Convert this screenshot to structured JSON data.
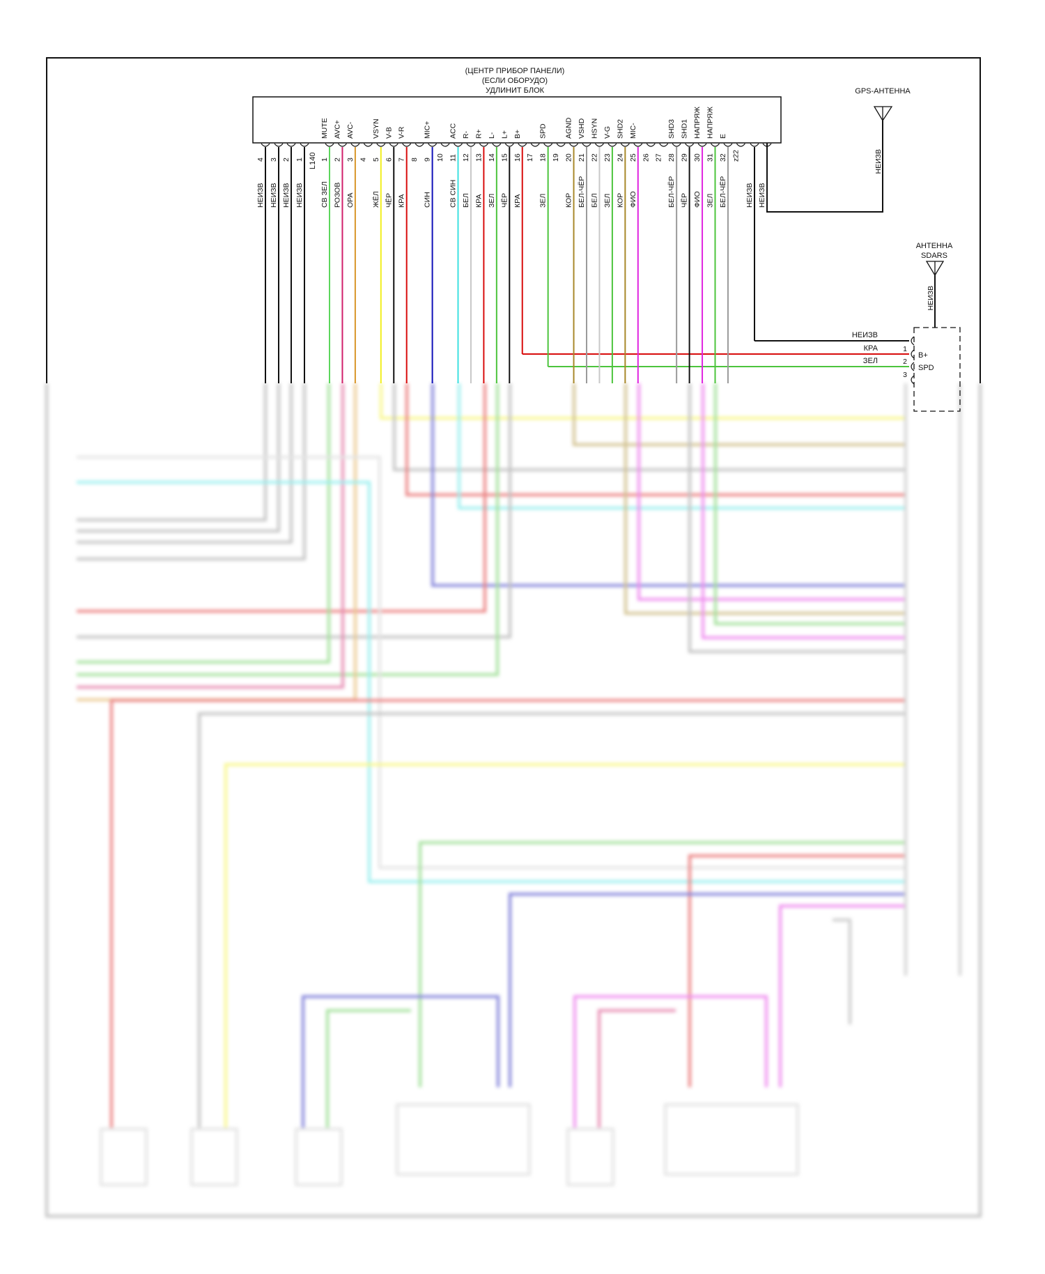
{
  "unit": {
    "title_lines": [
      "(ЦЕНТР ПРИБОР ПАНЕЛИ)",
      "(ЕСЛИ ОБОРУДО)",
      "УДЛИНИТ БЛОК"
    ],
    "connector_id": "L140"
  },
  "colors": {
    "ЧЁР": "#111111",
    "НЕИЗВ": "#111111",
    "СВ ЗЕЛ": "#5cd65c",
    "РОЗОВ": "#d0206a",
    "ОРА": "#d8962a",
    "ЖЁЛ": "#f2ef1e",
    "КРА": "#d80c0c",
    "СИН": "#1010b8",
    "СВ СИН": "#3ee0e0",
    "БЕЛ": "#c8c8c8",
    "ЗЕЛ": "#4cc43c",
    "КОР": "#a8882a",
    "БЕЛ-ЧЁР": "#9a9a9a",
    "ФИО": "#e024e0"
  },
  "left_pins": [
    {
      "num": "4",
      "wire": "НЕИЗВ"
    },
    {
      "num": "3",
      "wire": "НЕИЗВ"
    },
    {
      "num": "2",
      "wire": "НЕИЗВ"
    },
    {
      "num": "1",
      "wire": "НЕИЗВ"
    }
  ],
  "pins": [
    {
      "num": "1",
      "signal": "MUTE",
      "wire": "СВ ЗЕЛ"
    },
    {
      "num": "2",
      "signal": "AVC+",
      "wire": "РОЗОВ"
    },
    {
      "num": "3",
      "signal": "AVC-",
      "wire": "ОРА"
    },
    {
      "num": "4",
      "signal": "",
      "wire": ""
    },
    {
      "num": "5",
      "signal": "VSYN",
      "wire": "ЖЁЛ"
    },
    {
      "num": "6",
      "signal": "V-B",
      "wire": "ЧЁР"
    },
    {
      "num": "7",
      "signal": "V-R",
      "wire": "КРА"
    },
    {
      "num": "8",
      "signal": "",
      "wire": ""
    },
    {
      "num": "9",
      "signal": "MIC+",
      "wire": "СИН"
    },
    {
      "num": "10",
      "signal": "",
      "wire": ""
    },
    {
      "num": "11",
      "signal": "ACC",
      "wire": "СВ СИН"
    },
    {
      "num": "12",
      "signal": "R-",
      "wire": "БЕЛ"
    },
    {
      "num": "13",
      "signal": "R+",
      "wire": "КРА"
    },
    {
      "num": "14",
      "signal": "L-",
      "wire": "ЗЕЛ"
    },
    {
      "num": "15",
      "signal": "L+",
      "wire": "ЧЁР"
    },
    {
      "num": "16",
      "signal": "B+",
      "wire": "КРА"
    },
    {
      "num": "17",
      "signal": "",
      "wire": ""
    },
    {
      "num": "18",
      "signal": "SPD",
      "wire": "ЗЕЛ"
    },
    {
      "num": "19",
      "signal": "",
      "wire": ""
    },
    {
      "num": "20",
      "signal": "AGND",
      "wire": "КОР"
    },
    {
      "num": "21",
      "signal": "VSHD",
      "wire": "БЕЛ-ЧЁР"
    },
    {
      "num": "22",
      "signal": "HSYN",
      "wire": "БЕЛ"
    },
    {
      "num": "23",
      "signal": "V-G",
      "wire": "ЗЕЛ"
    },
    {
      "num": "24",
      "signal": "SHD2",
      "wire": "КОР"
    },
    {
      "num": "25",
      "signal": "MIC-",
      "wire": "ФИО"
    },
    {
      "num": "26",
      "signal": "",
      "wire": ""
    },
    {
      "num": "27",
      "signal": "",
      "wire": ""
    },
    {
      "num": "28",
      "signal": "SHD3",
      "wire": "БЕЛ-ЧЁР"
    },
    {
      "num": "29",
      "signal": "SHD1",
      "wire": "ЧЁР"
    },
    {
      "num": "30",
      "signal": "НАПРЯЖ",
      "wire": "ФИО"
    },
    {
      "num": "31",
      "signal": "НАПРЯЖ",
      "wire": "ЗЕЛ"
    },
    {
      "num": "32",
      "signal": "E",
      "wire": "БЕЛ-ЧЁР"
    },
    {
      "num": "z22",
      "signal": "",
      "wire": ""
    }
  ],
  "extra_pins": [
    {
      "wire": "НЕИЗВ"
    },
    {
      "wire": "НЕИЗВ"
    }
  ],
  "gps_antenna": {
    "label": "GPS-АНТЕННА",
    "wire": "НЕИЗВ"
  },
  "sdars_antenna": {
    "label_lines": [
      "АНТЕННА",
      "SDARS"
    ],
    "wire": "НЕИЗВ",
    "connections": [
      {
        "num": "",
        "wire": "НЕИЗВ",
        "signal": ""
      },
      {
        "num": "1",
        "wire": "КРА",
        "signal": "B+"
      },
      {
        "num": "2",
        "wire": "ЗЕЛ",
        "signal": "SPD"
      },
      {
        "num": "3",
        "wire": "",
        "signal": ""
      }
    ]
  }
}
